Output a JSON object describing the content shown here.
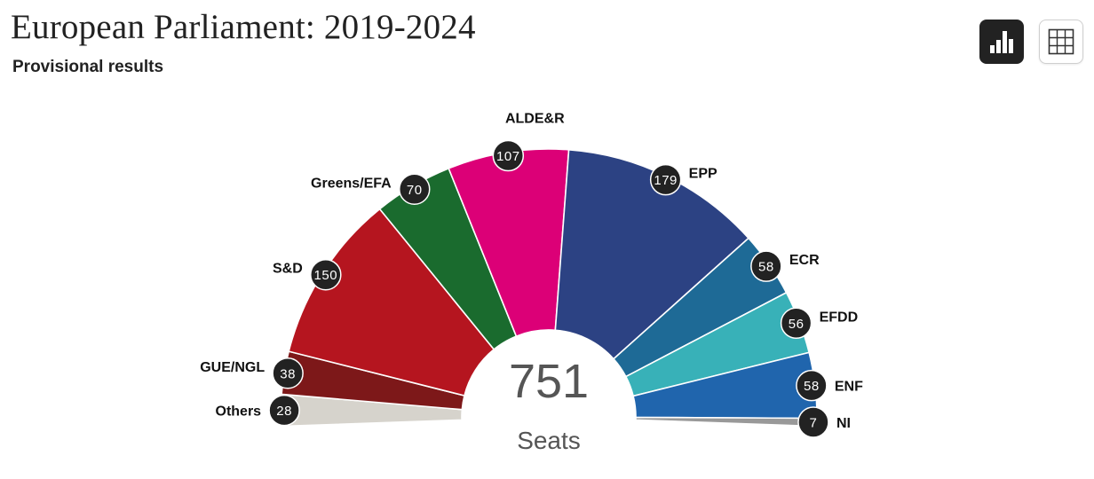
{
  "header": {
    "title": "European Parliament: 2019-2024",
    "subtitle": "Provisional results"
  },
  "toolbar": {
    "chart_view_icon": "bar-chart-icon",
    "table_view_icon": "grid-table-icon"
  },
  "chart_data": {
    "type": "pie",
    "subtype": "parliament-hemicycle",
    "title": "European Parliament: 2019-2024",
    "subtitle": "Provisional results",
    "total_seats": 751,
    "total_label": "751",
    "unit_label": "Seats",
    "parties": [
      {
        "name": "Others",
        "seats": 28,
        "color": "#d6d3cc"
      },
      {
        "name": "GUE/NGL",
        "seats": 38,
        "color": "#7d1819"
      },
      {
        "name": "S&D",
        "seats": 150,
        "color": "#b5151f"
      },
      {
        "name": "Greens/EFA",
        "seats": 70,
        "color": "#1a6b2e"
      },
      {
        "name": "ALDE&R",
        "seats": 107,
        "color": "#dc0077"
      },
      {
        "name": "EPP",
        "seats": 179,
        "color": "#2c4283"
      },
      {
        "name": "ECR",
        "seats": 58,
        "color": "#1e6a96"
      },
      {
        "name": "EFDD",
        "seats": 56,
        "color": "#38b1b8"
      },
      {
        "name": "ENF",
        "seats": 58,
        "color": "#2065ad"
      },
      {
        "name": "NI",
        "seats": 7,
        "color": "#999999"
      }
    ],
    "badge_color": "#222222"
  }
}
